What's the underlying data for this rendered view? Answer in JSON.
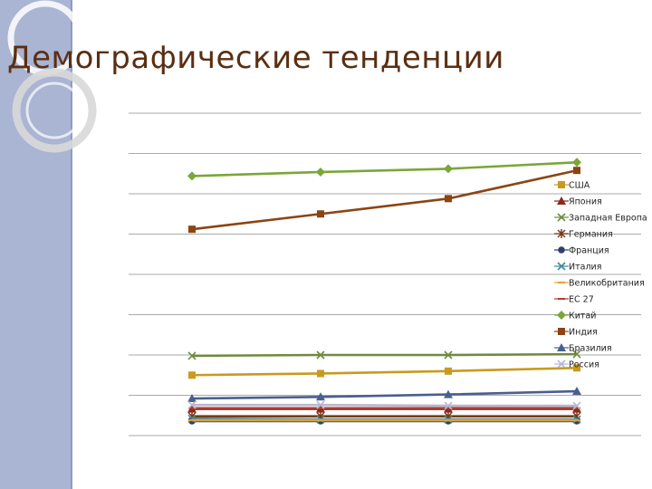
{
  "slide": {
    "title": "Демографические тенденции"
  },
  "chart_data": {
    "type": "line",
    "title": "",
    "xlabel": "",
    "ylabel": "",
    "categories": [
      "",
      "",
      "",
      ""
    ],
    "ylim": [
      0,
      400
    ],
    "grid": true,
    "legend_position": "right",
    "series": [
      {
        "name": "США",
        "color": "#c99a1e",
        "marker": "square",
        "values": [
          75,
          77,
          80,
          84
        ]
      },
      {
        "name": "Япония",
        "color": "#8b2a1c",
        "marker": "triangle",
        "values": [
          33,
          33,
          33,
          33
        ]
      },
      {
        "name": "Западная Европа",
        "color": "#6e8b3d",
        "marker": "x",
        "values": [
          99,
          100,
          100,
          101
        ]
      },
      {
        "name": "Германия",
        "color": "#7a3a1a",
        "marker": "star",
        "values": [
          24,
          24,
          24,
          24
        ]
      },
      {
        "name": "Франция",
        "color": "#2f3f6a",
        "marker": "circle",
        "values": [
          18,
          18,
          18,
          18
        ]
      },
      {
        "name": "Италия",
        "color": "#3f8a95",
        "marker": "x",
        "values": [
          21,
          20,
          20,
          20
        ]
      },
      {
        "name": "Великобритания",
        "color": "#e0a23a",
        "marker": "dash",
        "values": [
          19,
          19,
          19,
          19
        ]
      },
      {
        "name": "ЕС 27",
        "color": "#b03a2e",
        "marker": "dash",
        "values": [
          34,
          34,
          34,
          34
        ]
      },
      {
        "name": "Китай",
        "color": "#7aa63a",
        "marker": "diamond",
        "values": [
          322,
          327,
          331,
          339
        ]
      },
      {
        "name": "Индия",
        "color": "#8b4513",
        "marker": "square",
        "values": [
          256,
          275,
          294,
          329
        ]
      },
      {
        "name": "Бразилия",
        "color": "#4a5f8e",
        "marker": "triangle",
        "values": [
          46,
          48,
          51,
          55
        ]
      },
      {
        "name": "Россия",
        "color": "#b8b8d0",
        "marker": "x",
        "values": [
          38,
          38,
          37,
          37
        ]
      }
    ]
  }
}
